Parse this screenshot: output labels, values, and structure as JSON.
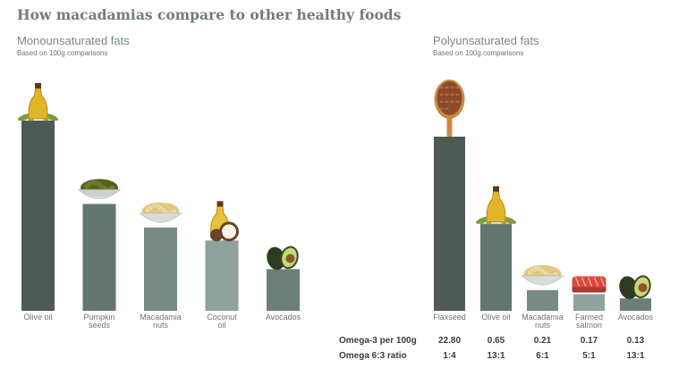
{
  "title": "How macadamias compare to other healthy foods",
  "chart_data": [
    {
      "type": "bar",
      "title": "Monounsaturated fats",
      "subtitle": "Based on 100g comparisons",
      "categories": [
        [
          "Olive oil"
        ],
        [
          "Pumpkin",
          "seeds"
        ],
        [
          "Macadamia",
          "nuts"
        ],
        [
          "Coconut",
          "oil"
        ],
        [
          "Avocados"
        ]
      ],
      "values": [
        73,
        41,
        32,
        27,
        16
      ],
      "colors": [
        "#4d5a55",
        "#637670",
        "#788a84",
        "#8fa29c",
        "#6b7e77"
      ],
      "icons": [
        "olive-oil-bottle-icon",
        "pumpkin-seeds-bowl-icon",
        "macadamia-nuts-bowl-icon",
        "coconut-oil-icon",
        "avocado-icon"
      ]
    },
    {
      "type": "bar",
      "title": "Polyunsaturated fats",
      "subtitle": "Based on 100g comparisons",
      "categories": [
        [
          "Flaxseed"
        ],
        [
          "Olive oil"
        ],
        [
          "Macadamia",
          "nuts"
        ],
        [
          "Farmed",
          "salmon"
        ],
        [
          "Avocados"
        ]
      ],
      "values": [
        42,
        21,
        5,
        4,
        3
      ],
      "colors": [
        "#4d5a55",
        "#637670",
        "#788a84",
        "#8fa29c",
        "#6b7e77"
      ],
      "icons": [
        "flaxseed-spoon-icon",
        "olive-oil-bottle-icon",
        "macadamia-nuts-bowl-icon",
        "salmon-fillet-icon",
        "avocado-icon"
      ],
      "table": {
        "rows": [
          {
            "label": "Omega-3 per 100g",
            "values": [
              "22.80",
              "0.65",
              "0.21",
              "0.17",
              "0.13"
            ]
          },
          {
            "label": "Omega 6:3 ratio",
            "values": [
              "1:4",
              "13:1",
              "6:1",
              "5:1",
              "13:1"
            ]
          }
        ]
      }
    }
  ]
}
